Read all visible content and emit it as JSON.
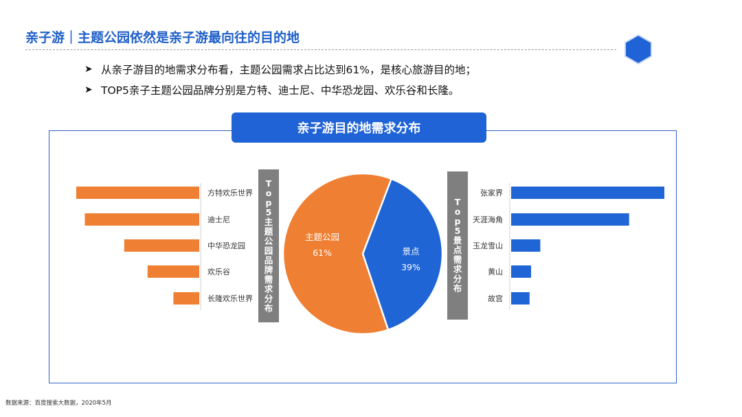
{
  "header": {
    "title": "亲子游｜主题公园依然是亲子游最向往的目的地"
  },
  "bullets": [
    "从亲子游目的地需求分布看，主题公园需求占比达到61%，是核心旅游目的地；",
    "TOP5亲子主题公园品牌分别是方特、迪士尼、中华恐龙园、欢乐谷和长隆。"
  ],
  "panel": {
    "title": "亲子游目的地需求分布",
    "left_label": "Top5主题公园品牌需求分布",
    "right_label": "Top5景点需求分布"
  },
  "footer": {
    "source": "数据来源：百度搜索大数据，2020年5月"
  },
  "colors": {
    "accent_blue": "#2063d6",
    "title_blue": "#1f5fc8",
    "orange": "#ef7f32",
    "bar_blue": "#1f65d6",
    "label_gray": "#7f7f7f"
  },
  "icons": {
    "bullet": "arrow-bullet-icon",
    "corner": "hexagon-icon"
  },
  "chart_data": [
    {
      "type": "pie",
      "categories": [
        "主题公园",
        "景点"
      ],
      "values": [
        61,
        39
      ],
      "value_labels": [
        "61%",
        "39%"
      ],
      "colors": [
        "#ef7f32",
        "#1f65d6"
      ]
    },
    {
      "type": "bar",
      "orientation": "horizontal",
      "direction": "right-to-left",
      "categories": [
        "方特欢乐世界",
        "迪士尼",
        "中华恐龙园",
        "欢乐谷",
        "长隆欢乐世界"
      ],
      "values": [
        100,
        93,
        61,
        42,
        21
      ],
      "color": "#ef7f32"
    },
    {
      "type": "bar",
      "orientation": "horizontal",
      "direction": "left-to-right",
      "categories": [
        "张家界",
        "天涯海角",
        "玉龙雪山",
        "黄山",
        "故宫"
      ],
      "values": [
        100,
        77,
        19,
        13,
        12
      ],
      "color": "#1f65d6"
    }
  ]
}
